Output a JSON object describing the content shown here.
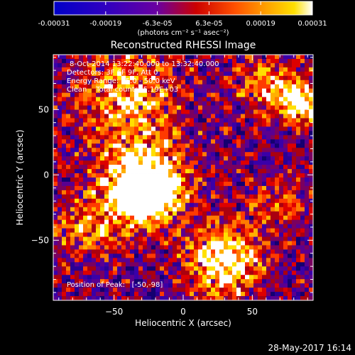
{
  "chart_data": {
    "type": "heatmap",
    "title": "Reconstructed RHESSI Image",
    "xlabel": "Heliocentric X (arcsec)",
    "ylabel": "Heliocentric Y (arcsec)",
    "xlim": [
      -94,
      94
    ],
    "ylim": [
      -96,
      92
    ],
    "xticks": [
      -50,
      0,
      50
    ],
    "xtick_labels": [
      "−50",
      "0",
      "50"
    ],
    "yticks": [
      -50,
      0,
      50
    ],
    "ytick_labels": [
      "−50",
      "0",
      "50"
    ],
    "colorbar": {
      "range": [
        -0.00031,
        0.00031
      ],
      "tick_labels": [
        "-0.00031",
        "-0.00019",
        "-6.3e-05",
        "6.3e-05",
        "0.00019",
        "0.00031"
      ],
      "unit_label": "(photons cm⁻² s⁻¹ asec⁻²)",
      "colors": [
        "#0000c8",
        "#6a00a0",
        "#cc0000",
        "#ff7a00",
        "#ffe000",
        "#ffffff"
      ]
    },
    "grid": false,
    "peak_position": [
      -50,
      -98
    ]
  },
  "overlay": {
    "line1": "8-Oct-2014 13:22:40.000 to 13:32:40.000",
    "line2": "Detectors: 3F 6F 9F, Att 0",
    "line3": "Energy Range: 25.0 - 50.0 keV",
    "line4": "Clean    Total counts: 5.19E+03",
    "peak": "Position of Peak:   [-50,-98]"
  },
  "footer": {
    "timestamp": "28-May-2017 16:14"
  }
}
